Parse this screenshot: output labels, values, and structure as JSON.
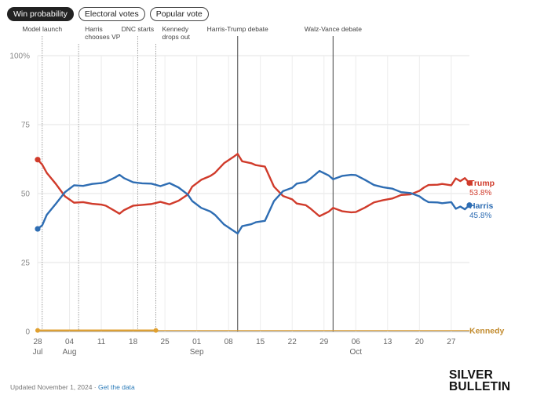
{
  "tabs": [
    {
      "label": "Win probability",
      "active": true
    },
    {
      "label": "Electoral votes",
      "active": false
    },
    {
      "label": "Popular vote",
      "active": false
    }
  ],
  "footer": {
    "updated": "Updated November 1, 2024 · ",
    "link": "Get the data"
  },
  "brand": {
    "line1": "SILVER",
    "line2": "BULLETIN"
  },
  "chart_data": {
    "type": "line",
    "x_axis": {
      "type": "date",
      "range": [
        "2024-07-28",
        "2024-10-31"
      ],
      "ticks": [
        {
          "date": "2024-07-28",
          "label": "28",
          "sublabel": "Jul"
        },
        {
          "date": "2024-08-04",
          "label": "04",
          "sublabel": "Aug"
        },
        {
          "date": "2024-08-11",
          "label": "11",
          "sublabel": ""
        },
        {
          "date": "2024-08-18",
          "label": "18",
          "sublabel": ""
        },
        {
          "date": "2024-08-25",
          "label": "25",
          "sublabel": ""
        },
        {
          "date": "2024-09-01",
          "label": "01",
          "sublabel": "Sep"
        },
        {
          "date": "2024-09-08",
          "label": "08",
          "sublabel": ""
        },
        {
          "date": "2024-09-15",
          "label": "15",
          "sublabel": ""
        },
        {
          "date": "2024-09-22",
          "label": "22",
          "sublabel": ""
        },
        {
          "date": "2024-09-29",
          "label": "29",
          "sublabel": ""
        },
        {
          "date": "2024-10-06",
          "label": "06",
          "sublabel": "Oct"
        },
        {
          "date": "2024-10-13",
          "label": "13",
          "sublabel": ""
        },
        {
          "date": "2024-10-20",
          "label": "20",
          "sublabel": ""
        },
        {
          "date": "2024-10-27",
          "label": "27",
          "sublabel": ""
        }
      ]
    },
    "y_axis": {
      "range": [
        0,
        100
      ],
      "ticks": [
        {
          "value": 0,
          "label": "0"
        },
        {
          "value": 25,
          "label": "25"
        },
        {
          "value": 50,
          "label": "50"
        },
        {
          "value": 75,
          "label": "75"
        },
        {
          "value": 100,
          "label": "100%"
        }
      ]
    },
    "grid": true,
    "annotations": [
      {
        "date": "2024-07-29",
        "lines": [
          "Model launch"
        ],
        "emphasis": false
      },
      {
        "date": "2024-08-06",
        "lines": [
          "Harris",
          "chooses VP"
        ],
        "emphasis": false
      },
      {
        "date": "2024-08-19",
        "lines": [
          "DNC starts"
        ],
        "emphasis": false
      },
      {
        "date": "2024-08-23",
        "lines": [
          "Kennedy",
          "drops out"
        ],
        "emphasis": false
      },
      {
        "date": "2024-09-10",
        "lines": [
          "Harris-Trump debate"
        ],
        "emphasis": true
      },
      {
        "date": "2024-10-01",
        "lines": [
          "Walz-Vance debate"
        ],
        "emphasis": true
      }
    ],
    "series": [
      {
        "name": "Trump",
        "color": "#d03b2b",
        "end_label": "53.8%",
        "points": [
          [
            "2024-07-28",
            62.3
          ],
          [
            "2024-07-29",
            60.5
          ],
          [
            "2024-07-30",
            57.5
          ],
          [
            "2024-08-01",
            53.5
          ],
          [
            "2024-08-03",
            49.0
          ],
          [
            "2024-08-05",
            46.7
          ],
          [
            "2024-08-07",
            46.9
          ],
          [
            "2024-08-09",
            46.3
          ],
          [
            "2024-08-11",
            46.0
          ],
          [
            "2024-08-12",
            45.6
          ],
          [
            "2024-08-14",
            43.7
          ],
          [
            "2024-08-15",
            42.7
          ],
          [
            "2024-08-16",
            44.0
          ],
          [
            "2024-08-18",
            45.6
          ],
          [
            "2024-08-20",
            45.9
          ],
          [
            "2024-08-22",
            46.2
          ],
          [
            "2024-08-24",
            47.0
          ],
          [
            "2024-08-26",
            46.1
          ],
          [
            "2024-08-28",
            47.4
          ],
          [
            "2024-08-30",
            49.6
          ],
          [
            "2024-08-31",
            52.5
          ],
          [
            "2024-09-02",
            55.0
          ],
          [
            "2024-09-04",
            56.4
          ],
          [
            "2024-09-05",
            57.5
          ],
          [
            "2024-09-07",
            61.0
          ],
          [
            "2024-09-09",
            63.2
          ],
          [
            "2024-09-10",
            64.4
          ],
          [
            "2024-09-11",
            61.7
          ],
          [
            "2024-09-13",
            61.0
          ],
          [
            "2024-09-14",
            60.3
          ],
          [
            "2024-09-16",
            59.8
          ],
          [
            "2024-09-18",
            52.5
          ],
          [
            "2024-09-20",
            49.1
          ],
          [
            "2024-09-22",
            47.9
          ],
          [
            "2024-09-23",
            46.4
          ],
          [
            "2024-09-25",
            45.8
          ],
          [
            "2024-09-26",
            44.6
          ],
          [
            "2024-09-28",
            41.8
          ],
          [
            "2024-09-30",
            43.4
          ],
          [
            "2024-10-01",
            44.8
          ],
          [
            "2024-10-03",
            43.6
          ],
          [
            "2024-10-05",
            43.2
          ],
          [
            "2024-10-06",
            43.3
          ],
          [
            "2024-10-08",
            44.9
          ],
          [
            "2024-10-10",
            46.8
          ],
          [
            "2024-10-12",
            47.6
          ],
          [
            "2024-10-14",
            48.2
          ],
          [
            "2024-10-16",
            49.5
          ],
          [
            "2024-10-18",
            49.7
          ],
          [
            "2024-10-20",
            51.0
          ],
          [
            "2024-10-21",
            52.2
          ],
          [
            "2024-10-22",
            53.1
          ],
          [
            "2024-10-24",
            53.2
          ],
          [
            "2024-10-25",
            53.5
          ],
          [
            "2024-10-27",
            53.0
          ],
          [
            "2024-10-28",
            55.5
          ],
          [
            "2024-10-29",
            54.5
          ],
          [
            "2024-10-30",
            55.6
          ],
          [
            "2024-10-31",
            53.8
          ]
        ]
      },
      {
        "name": "Harris",
        "color": "#2e6db3",
        "end_label": "45.8%",
        "points": [
          [
            "2024-07-28",
            37.2
          ],
          [
            "2024-07-29",
            38.5
          ],
          [
            "2024-07-30",
            42.3
          ],
          [
            "2024-08-01",
            46.3
          ],
          [
            "2024-08-03",
            50.5
          ],
          [
            "2024-08-05",
            53.0
          ],
          [
            "2024-08-07",
            52.8
          ],
          [
            "2024-08-09",
            53.5
          ],
          [
            "2024-08-11",
            53.8
          ],
          [
            "2024-08-12",
            54.2
          ],
          [
            "2024-08-14",
            55.8
          ],
          [
            "2024-08-15",
            56.8
          ],
          [
            "2024-08-16",
            55.6
          ],
          [
            "2024-08-18",
            54.1
          ],
          [
            "2024-08-20",
            53.7
          ],
          [
            "2024-08-22",
            53.6
          ],
          [
            "2024-08-24",
            52.7
          ],
          [
            "2024-08-26",
            53.8
          ],
          [
            "2024-08-28",
            52.2
          ],
          [
            "2024-08-30",
            49.7
          ],
          [
            "2024-08-31",
            47.3
          ],
          [
            "2024-09-02",
            44.8
          ],
          [
            "2024-09-04",
            43.5
          ],
          [
            "2024-09-05",
            42.3
          ],
          [
            "2024-09-07",
            38.8
          ],
          [
            "2024-09-09",
            36.6
          ],
          [
            "2024-09-10",
            35.5
          ],
          [
            "2024-09-11",
            38.2
          ],
          [
            "2024-09-13",
            38.9
          ],
          [
            "2024-09-14",
            39.6
          ],
          [
            "2024-09-16",
            40.1
          ],
          [
            "2024-09-18",
            47.3
          ],
          [
            "2024-09-20",
            50.9
          ],
          [
            "2024-09-22",
            52.1
          ],
          [
            "2024-09-23",
            53.6
          ],
          [
            "2024-09-25",
            54.2
          ],
          [
            "2024-09-26",
            55.4
          ],
          [
            "2024-09-28",
            58.2
          ],
          [
            "2024-09-30",
            56.6
          ],
          [
            "2024-10-01",
            55.2
          ],
          [
            "2024-10-03",
            56.4
          ],
          [
            "2024-10-05",
            56.8
          ],
          [
            "2024-10-06",
            56.7
          ],
          [
            "2024-10-08",
            55.0
          ],
          [
            "2024-10-10",
            53.1
          ],
          [
            "2024-10-12",
            52.3
          ],
          [
            "2024-10-14",
            51.8
          ],
          [
            "2024-10-16",
            50.5
          ],
          [
            "2024-10-18",
            50.2
          ],
          [
            "2024-10-20",
            49.0
          ],
          [
            "2024-10-21",
            47.8
          ],
          [
            "2024-10-22",
            46.9
          ],
          [
            "2024-10-24",
            46.8
          ],
          [
            "2024-10-25",
            46.5
          ],
          [
            "2024-10-27",
            46.9
          ],
          [
            "2024-10-28",
            44.5
          ],
          [
            "2024-10-29",
            45.3
          ],
          [
            "2024-10-30",
            44.3
          ],
          [
            "2024-10-31",
            45.8
          ]
        ]
      },
      {
        "name": "Kennedy",
        "color": "#e0a030",
        "end_label": "",
        "points": [
          [
            "2024-07-28",
            0.4
          ],
          [
            "2024-08-23",
            0.4
          ]
        ],
        "flat_line_to_end": true
      }
    ]
  }
}
